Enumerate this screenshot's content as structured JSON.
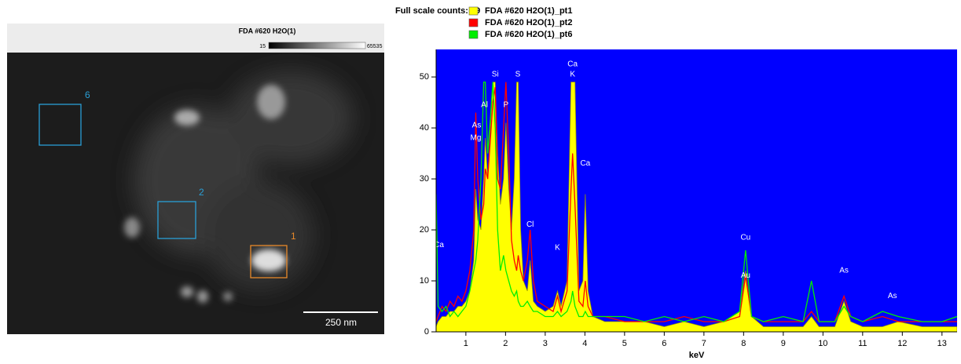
{
  "image_panel": {
    "title": "FDA #620 H2O(1)",
    "colorbar": {
      "min": 15,
      "max": 65535
    },
    "regions": [
      {
        "label": "6",
        "color": "#2a9fd6"
      },
      {
        "label": "2",
        "color": "#2a9fd6"
      },
      {
        "label": "1",
        "color": "#e8892a"
      }
    ],
    "scale_bar": "250 nm"
  },
  "chart_data": {
    "type": "spectrum",
    "header": "Full scale counts: 49",
    "xlabel": "keV",
    "legend": "top",
    "background": "#0000ff",
    "x": [
      0.25,
      0.3,
      0.4,
      0.5,
      0.6,
      0.7,
      0.8,
      0.9,
      1.0,
      1.1,
      1.2,
      1.25,
      1.3,
      1.38,
      1.45,
      1.49,
      1.55,
      1.62,
      1.68,
      1.74,
      1.8,
      1.87,
      1.95,
      2.01,
      2.08,
      2.15,
      2.22,
      2.28,
      2.32,
      2.38,
      2.45,
      2.55,
      2.62,
      2.7,
      2.8,
      3.0,
      3.2,
      3.31,
      3.4,
      3.55,
      3.65,
      3.69,
      3.75,
      3.85,
      3.95,
      4.01,
      4.08,
      4.2,
      4.5,
      5.0,
      5.5,
      6.0,
      6.5,
      7.0,
      7.5,
      7.9,
      8.05,
      8.2,
      8.5,
      9.0,
      9.5,
      9.71,
      9.9,
      10.3,
      10.53,
      10.7,
      11.0,
      11.5,
      11.9,
      12.5,
      13.0,
      13.38
    ],
    "series": [
      {
        "name": "FDA #620 H2O(1)_pt1",
        "color": "#ffff00",
        "fill": true,
        "values": [
          1,
          2,
          3,
          3,
          4,
          4,
          5,
          5,
          6,
          8,
          14,
          28,
          22,
          20,
          30,
          38,
          30,
          40,
          49,
          49,
          35,
          25,
          30,
          41,
          28,
          20,
          30,
          49,
          49,
          20,
          10,
          8,
          14,
          6,
          5,
          4,
          5,
          8,
          5,
          10,
          49,
          49,
          49,
          8,
          10,
          27,
          8,
          3,
          2,
          2,
          2,
          1,
          2,
          1,
          2,
          4,
          12,
          3,
          1,
          1,
          1,
          3,
          1,
          1,
          6,
          2,
          1,
          1,
          2,
          1,
          1,
          1
        ]
      },
      {
        "name": "FDA #620 H2O(1)_pt2",
        "color": "#ff0000",
        "fill": false,
        "values": [
          2,
          3,
          5,
          4,
          6,
          5,
          7,
          6,
          8,
          12,
          20,
          43,
          30,
          22,
          25,
          32,
          30,
          38,
          45,
          48,
          30,
          28,
          40,
          49,
          35,
          18,
          14,
          12,
          15,
          12,
          10,
          14,
          20,
          10,
          6,
          5,
          4,
          7,
          4,
          8,
          28,
          35,
          25,
          6,
          5,
          10,
          5,
          3,
          3,
          2,
          2,
          2,
          3,
          2,
          2,
          3,
          11,
          3,
          2,
          2,
          2,
          4,
          2,
          2,
          7,
          3,
          2,
          3,
          2,
          2,
          2,
          2
        ]
      },
      {
        "name": "FDA #620 H2O(1)_pt6",
        "color": "#00ee00",
        "fill": false,
        "values": [
          27,
          5,
          4,
          5,
          3,
          4,
          3,
          4,
          5,
          8,
          12,
          14,
          18,
          30,
          49,
          49,
          35,
          42,
          49,
          40,
          20,
          12,
          15,
          12,
          10,
          8,
          7,
          8,
          6,
          5,
          5,
          6,
          5,
          4,
          4,
          3,
          3,
          4,
          3,
          4,
          6,
          8,
          5,
          3,
          3,
          4,
          3,
          3,
          3,
          3,
          2,
          3,
          2,
          3,
          2,
          4,
          16,
          3,
          2,
          3,
          2,
          10,
          2,
          2,
          5,
          3,
          2,
          4,
          3,
          2,
          2,
          3
        ]
      }
    ],
    "xlim": [
      0.25,
      13.38
    ],
    "xticks": [
      1,
      2,
      3,
      4,
      5,
      6,
      7,
      8,
      9,
      10,
      11,
      12,
      13
    ],
    "ylim": [
      0,
      55.4
    ],
    "yticks": [
      0,
      10,
      20,
      30,
      40,
      50
    ],
    "annotations": [
      {
        "text": "Ca",
        "x": 0.32,
        "y": 17
      },
      {
        "text": "As",
        "x": 1.27,
        "y": 40.5
      },
      {
        "text": "Mg",
        "x": 1.25,
        "y": 38
      },
      {
        "text": "Al",
        "x": 1.47,
        "y": 44.5
      },
      {
        "text": "Si",
        "x": 1.74,
        "y": 50.5
      },
      {
        "text": "S",
        "x": 2.31,
        "y": 50.5
      },
      {
        "text": "P",
        "x": 2.01,
        "y": 44.5
      },
      {
        "text": "Cl",
        "x": 2.62,
        "y": 21
      },
      {
        "text": "K",
        "x": 3.31,
        "y": 16.5
      },
      {
        "text": "Ca",
        "x": 3.69,
        "y": 52.5
      },
      {
        "text": "K",
        "x": 3.69,
        "y": 50.5
      },
      {
        "text": "Ca",
        "x": 4.01,
        "y": 33
      },
      {
        "text": "Cu",
        "x": 8.05,
        "y": 18.5
      },
      {
        "text": "Au",
        "x": 8.05,
        "y": 11
      },
      {
        "text": "As",
        "x": 10.53,
        "y": 12
      },
      {
        "text": "As",
        "x": 11.75,
        "y": 7
      }
    ]
  }
}
